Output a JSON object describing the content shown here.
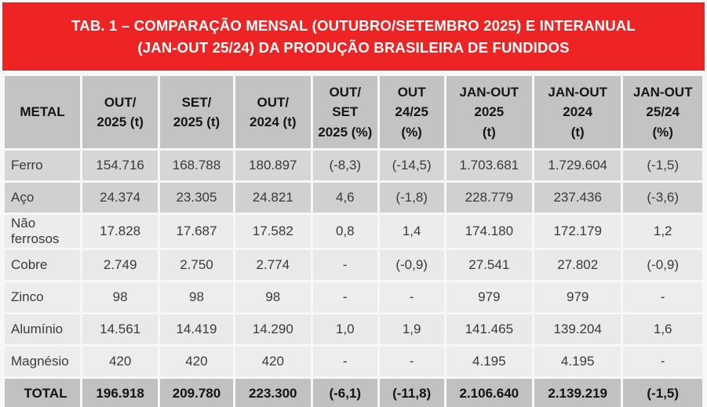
{
  "title": {
    "line1": "TAB. 1 – COMPARAÇÃO MENSAL (OUTUBRO/SETEMBRO 2025) E INTERANUAL",
    "line2": "(JAN-OUT 25/24) DA PRODUÇÃO BRASILEIRA DE FUNDIDOS"
  },
  "colors": {
    "banner_red": "#ee2424",
    "banner_text": "#ffffff",
    "header_gray": "#c3c3c3",
    "total_row_gray": "#c1c1c1",
    "row_dark_1": "#d6d6d6",
    "row_dark_2": "#d0d0d0",
    "row_light": "#ececec",
    "body_text": "#3a3a3a"
  },
  "table": {
    "headers": [
      "METAL",
      "OUT/\n2025 (t)",
      "SET/\n2025 (t)",
      "OUT/\n2024 (t)",
      "OUT/\nSET\n2025 (%)",
      "OUT\n24/25\n(%)",
      "JAN-OUT\n2025\n(t)",
      "JAN-OUT\n2024\n(t)",
      "JAN-OUT\n25/24\n(%)"
    ],
    "rows": [
      {
        "metal": "Ferro",
        "values": [
          "154.716",
          "168.788",
          "180.897",
          "(-8,3)",
          "(-14,5)",
          "1.703.681",
          "1.729.604",
          "(-1,5)"
        ]
      },
      {
        "metal": "Aço",
        "values": [
          "24.374",
          "23.305",
          "24.821",
          "4,6",
          "(-1,8)",
          "228.779",
          "237.436",
          "(-3,6)"
        ]
      },
      {
        "metal": "Não ferrosos",
        "values": [
          "17.828",
          "17.687",
          "17.582",
          "0,8",
          "1,4",
          "174.180",
          "172.179",
          "1,2"
        ]
      },
      {
        "metal": "Cobre",
        "values": [
          "2.749",
          "2.750",
          "2.774",
          "-",
          "(-0,9)",
          "27.541",
          "27.802",
          "(-0,9)"
        ]
      },
      {
        "metal": "Zinco",
        "values": [
          "98",
          "98",
          "98",
          "-",
          "-",
          "979",
          "979",
          "-"
        ]
      },
      {
        "metal": "Alumínio",
        "values": [
          "14.561",
          "14.419",
          "14.290",
          "1,0",
          "1,9",
          "141.465",
          "139.204",
          "1,6"
        ]
      },
      {
        "metal": "Magnésio",
        "values": [
          "420",
          "420",
          "420",
          "-",
          "-",
          "4.195",
          "4.195",
          "-"
        ]
      }
    ],
    "total": {
      "metal": "TOTAL",
      "values": [
        "196.918",
        "209.780",
        "223.300",
        "(-6,1)",
        "(-11,8)",
        "2.106.640",
        "2.139.219",
        "(-1,5)"
      ]
    }
  },
  "chart_data": {
    "type": "table",
    "title": "TAB. 1 – COMPARAÇÃO MENSAL (OUTUBRO/SETEMBRO 2025) E INTERANUAL (JAN-OUT 25/24) DA PRODUÇÃO BRASILEIRA DE FUNDIDOS",
    "columns": [
      "METAL",
      "OUT/2025 (t)",
      "SET/2025 (t)",
      "OUT/2024 (t)",
      "OUT/SET 2025 (%)",
      "OUT 24/25 (%)",
      "JAN-OUT 2025 (t)",
      "JAN-OUT 2024 (t)",
      "JAN-OUT 25/24 (%)"
    ],
    "rows": [
      [
        "Ferro",
        "154.716",
        "168.788",
        "180.897",
        "(-8,3)",
        "(-14,5)",
        "1.703.681",
        "1.729.604",
        "(-1,5)"
      ],
      [
        "Aço",
        "24.374",
        "23.305",
        "24.821",
        "4,6",
        "(-1,8)",
        "228.779",
        "237.436",
        "(-3,6)"
      ],
      [
        "Não ferrosos",
        "17.828",
        "17.687",
        "17.582",
        "0,8",
        "1,4",
        "174.180",
        "172.179",
        "1,2"
      ],
      [
        "Cobre",
        "2.749",
        "2.750",
        "2.774",
        "-",
        "(-0,9)",
        "27.541",
        "27.802",
        "(-0,9)"
      ],
      [
        "Zinco",
        "98",
        "98",
        "98",
        "-",
        "-",
        "979",
        "979",
        "-"
      ],
      [
        "Alumínio",
        "14.561",
        "14.419",
        "14.290",
        "1,0",
        "1,9",
        "141.465",
        "139.204",
        "1,6"
      ],
      [
        "Magnésio",
        "420",
        "420",
        "420",
        "-",
        "-",
        "4.195",
        "4.195",
        "-"
      ],
      [
        "TOTAL",
        "196.918",
        "209.780",
        "223.300",
        "(-6,1)",
        "(-11,8)",
        "2.106.640",
        "2.139.219",
        "(-1,5)"
      ]
    ]
  }
}
